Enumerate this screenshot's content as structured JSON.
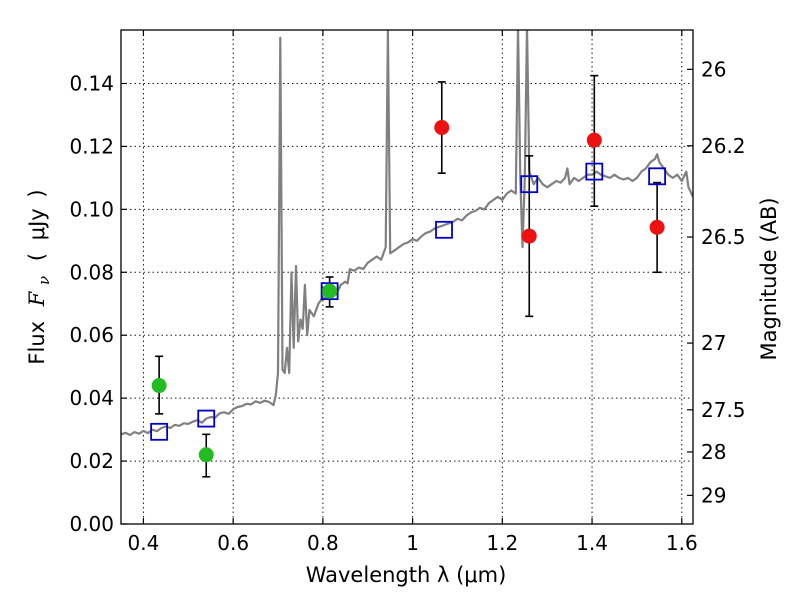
{
  "chart_data": {
    "type": "scatter",
    "xlabel": "Wavelength  λ (μm)",
    "ylabel_parts": {
      "flux": "Flux",
      "symbol": "F",
      "subscript": "ν",
      "unit_open": "(",
      "unit": "μJy",
      "unit_close": ")"
    },
    "ylabel_right": "Magnitude (AB)",
    "xlim": [
      0.35,
      1.625
    ],
    "ylim": [
      0.0,
      0.157
    ],
    "grid": true,
    "x_ticks": [
      {
        "v": 0.4,
        "label": "0.4"
      },
      {
        "v": 0.6,
        "label": "0.6"
      },
      {
        "v": 0.8,
        "label": "0.8"
      },
      {
        "v": 1.0,
        "label": "1"
      },
      {
        "v": 1.2,
        "label": "1.2"
      },
      {
        "v": 1.4,
        "label": "1.4"
      },
      {
        "v": 1.6,
        "label": "1.6"
      }
    ],
    "y_ticks": [
      {
        "v": 0.0,
        "label": "0.00"
      },
      {
        "v": 0.02,
        "label": "0.02"
      },
      {
        "v": 0.04,
        "label": "0.04"
      },
      {
        "v": 0.06,
        "label": "0.06"
      },
      {
        "v": 0.08,
        "label": "0.08"
      },
      {
        "v": 0.1,
        "label": "0.10"
      },
      {
        "v": 0.12,
        "label": "0.12"
      },
      {
        "v": 0.14,
        "label": "0.14"
      }
    ],
    "mag_ticks": [
      {
        "v": 0.1445,
        "label": "26"
      },
      {
        "v": 0.1202,
        "label": "26.2"
      },
      {
        "v": 0.0912,
        "label": "26.5"
      },
      {
        "v": 0.0575,
        "label": "27"
      },
      {
        "v": 0.0363,
        "label": "27.5"
      },
      {
        "v": 0.0229,
        "label": "28"
      },
      {
        "v": 0.0091,
        "label": "29"
      }
    ],
    "model_spectrum": {
      "color": "#808080",
      "points": [
        [
          0.35,
          0.0285
        ],
        [
          0.36,
          0.029
        ],
        [
          0.37,
          0.0283
        ],
        [
          0.38,
          0.0292
        ],
        [
          0.39,
          0.0287
        ],
        [
          0.4,
          0.0296
        ],
        [
          0.41,
          0.0289
        ],
        [
          0.42,
          0.03
        ],
        [
          0.43,
          0.0295
        ],
        [
          0.44,
          0.0305
        ],
        [
          0.45,
          0.031
        ],
        [
          0.46,
          0.0305
        ],
        [
          0.47,
          0.0315
        ],
        [
          0.48,
          0.0312
        ],
        [
          0.49,
          0.032
        ],
        [
          0.5,
          0.0318
        ],
        [
          0.51,
          0.0325
        ],
        [
          0.52,
          0.033
        ],
        [
          0.53,
          0.0322
        ],
        [
          0.54,
          0.0335
        ],
        [
          0.55,
          0.034
        ],
        [
          0.56,
          0.0338
        ],
        [
          0.57,
          0.0352
        ],
        [
          0.58,
          0.0355
        ],
        [
          0.59,
          0.035
        ],
        [
          0.6,
          0.0365
        ],
        [
          0.61,
          0.0372
        ],
        [
          0.62,
          0.0375
        ],
        [
          0.63,
          0.0382
        ],
        [
          0.64,
          0.038
        ],
        [
          0.65,
          0.039
        ],
        [
          0.66,
          0.0385
        ],
        [
          0.67,
          0.0392
        ],
        [
          0.68,
          0.0388
        ],
        [
          0.69,
          0.0378
        ],
        [
          0.695,
          0.041
        ],
        [
          0.7,
          0.048
        ],
        [
          0.705,
          0.1545
        ],
        [
          0.71,
          0.049
        ],
        [
          0.715,
          0.048
        ],
        [
          0.72,
          0.056
        ],
        [
          0.725,
          0.048
        ],
        [
          0.73,
          0.08
        ],
        [
          0.735,
          0.056
        ],
        [
          0.74,
          0.082
        ],
        [
          0.745,
          0.058
        ],
        [
          0.75,
          0.065
        ],
        [
          0.755,
          0.062
        ],
        [
          0.76,
          0.076
        ],
        [
          0.765,
          0.06
        ],
        [
          0.77,
          0.068
        ],
        [
          0.78,
          0.066
        ],
        [
          0.79,
          0.07
        ],
        [
          0.8,
          0.072
        ],
        [
          0.81,
          0.0715
        ],
        [
          0.82,
          0.0745
        ],
        [
          0.83,
          0.073
        ],
        [
          0.84,
          0.076
        ],
        [
          0.85,
          0.077
        ],
        [
          0.855,
          0.0765
        ],
        [
          0.86,
          0.081
        ],
        [
          0.87,
          0.0805
        ],
        [
          0.88,
          0.0815
        ],
        [
          0.89,
          0.081
        ],
        [
          0.9,
          0.083
        ],
        [
          0.91,
          0.084
        ],
        [
          0.92,
          0.085
        ],
        [
          0.93,
          0.084
        ],
        [
          0.94,
          0.088
        ],
        [
          0.945,
          0.157
        ],
        [
          0.95,
          0.086
        ],
        [
          0.96,
          0.087
        ],
        [
          0.97,
          0.088
        ],
        [
          0.98,
          0.089
        ],
        [
          0.99,
          0.0895
        ],
        [
          1.0,
          0.0905
        ],
        [
          1.01,
          0.09
        ],
        [
          1.02,
          0.0915
        ],
        [
          1.03,
          0.0925
        ],
        [
          1.04,
          0.093
        ],
        [
          1.05,
          0.094
        ],
        [
          1.06,
          0.0945
        ],
        [
          1.07,
          0.095
        ],
        [
          1.08,
          0.0955
        ],
        [
          1.09,
          0.096
        ],
        [
          1.1,
          0.097
        ],
        [
          1.11,
          0.0965
        ],
        [
          1.12,
          0.098
        ],
        [
          1.13,
          0.099
        ],
        [
          1.14,
          0.0995
        ],
        [
          1.15,
          0.1005
        ],
        [
          1.16,
          0.1
        ],
        [
          1.17,
          0.102
        ],
        [
          1.18,
          0.103
        ],
        [
          1.19,
          0.104
        ],
        [
          1.2,
          0.103
        ],
        [
          1.21,
          0.105
        ],
        [
          1.22,
          0.106
        ],
        [
          1.23,
          0.105
        ],
        [
          1.235,
          0.158
        ],
        [
          1.24,
          0.11
        ],
        [
          1.245,
          0.088
        ],
        [
          1.25,
          0.11
        ],
        [
          1.255,
          0.158
        ],
        [
          1.26,
          0.112
        ],
        [
          1.27,
          0.108
        ],
        [
          1.28,
          0.11
        ],
        [
          1.29,
          0.108
        ],
        [
          1.3,
          0.107
        ],
        [
          1.31,
          0.108
        ],
        [
          1.32,
          0.109
        ],
        [
          1.33,
          0.1085
        ],
        [
          1.34,
          0.11
        ],
        [
          1.345,
          0.113
        ],
        [
          1.35,
          0.108
        ],
        [
          1.36,
          0.11
        ],
        [
          1.37,
          0.109
        ],
        [
          1.38,
          0.11
        ],
        [
          1.39,
          0.111
        ],
        [
          1.4,
          0.111
        ],
        [
          1.41,
          0.112
        ],
        [
          1.42,
          0.111
        ],
        [
          1.43,
          0.1105
        ],
        [
          1.44,
          0.11
        ],
        [
          1.45,
          0.111
        ],
        [
          1.46,
          0.11
        ],
        [
          1.47,
          0.1095
        ],
        [
          1.48,
          0.11
        ],
        [
          1.49,
          0.109
        ],
        [
          1.5,
          0.11
        ],
        [
          1.51,
          0.112
        ],
        [
          1.52,
          0.113
        ],
        [
          1.53,
          0.115
        ],
        [
          1.54,
          0.116
        ],
        [
          1.545,
          0.1175
        ],
        [
          1.55,
          0.115
        ],
        [
          1.56,
          0.113
        ],
        [
          1.57,
          0.111
        ],
        [
          1.58,
          0.11
        ],
        [
          1.59,
          0.111
        ],
        [
          1.6,
          0.109
        ],
        [
          1.61,
          0.112
        ],
        [
          1.615,
          0.107
        ],
        [
          1.625,
          0.104
        ]
      ]
    },
    "series": [
      {
        "marker": "open-square",
        "color": "#0000cc",
        "points": [
          {
            "x": 0.435,
            "y": 0.0293
          },
          {
            "x": 0.54,
            "y": 0.0335
          },
          {
            "x": 0.815,
            "y": 0.074
          },
          {
            "x": 1.07,
            "y": 0.0935
          },
          {
            "x": 1.26,
            "y": 0.108
          },
          {
            "x": 1.405,
            "y": 0.112
          },
          {
            "x": 1.545,
            "y": 0.1105
          }
        ]
      },
      {
        "marker": "filled-circle",
        "color": "#22bb22",
        "points": [
          {
            "x": 0.435,
            "y": 0.044,
            "err": [
              0.035,
              0.0533
            ]
          },
          {
            "x": 0.54,
            "y": 0.022,
            "err": [
              0.015,
              0.0285
            ]
          },
          {
            "x": 0.815,
            "y": 0.074,
            "err": [
              0.069,
              0.0785
            ]
          }
        ]
      },
      {
        "marker": "filled-circle",
        "color": "#ee1111",
        "points": [
          {
            "x": 1.065,
            "y": 0.126,
            "err": [
              0.1115,
              0.1405
            ]
          },
          {
            "x": 1.26,
            "y": 0.0915,
            "err": [
              0.066,
              0.117
            ]
          },
          {
            "x": 1.405,
            "y": 0.122,
            "err": [
              0.101,
              0.1425
            ]
          },
          {
            "x": 1.545,
            "y": 0.0943,
            "err": [
              0.08,
              0.1085
            ]
          }
        ]
      }
    ]
  }
}
